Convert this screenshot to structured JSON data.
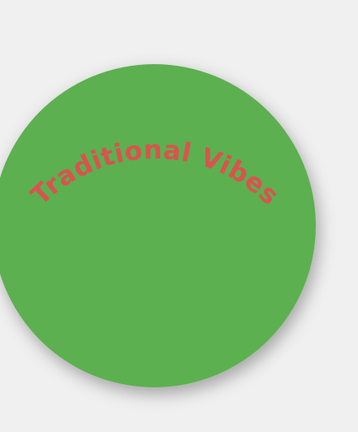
{
  "badge": {
    "text": "Traditional Vibes",
    "colors": {
      "background": "#f0f0f0",
      "circle_fill": "#5bb050",
      "text_fill": "#d9534f"
    }
  }
}
